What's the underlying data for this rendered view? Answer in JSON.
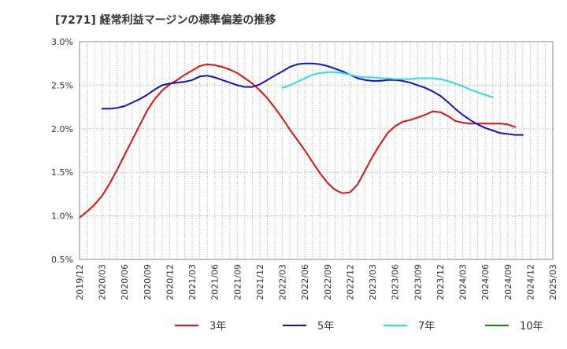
{
  "chart_data": {
    "type": "line",
    "title": "[7271]  経常利益マージンの標準偏差の推移",
    "x_ticks": [
      "2019/12",
      "2020/03",
      "2020/06",
      "2020/09",
      "2020/12",
      "2021/03",
      "2021/06",
      "2021/09",
      "2021/12",
      "2022/03",
      "2022/06",
      "2022/09",
      "2022/12",
      "2023/03",
      "2023/06",
      "2023/09",
      "2023/12",
      "2024/03",
      "2024/06",
      "2024/09",
      "2024/12",
      "2025/03"
    ],
    "y_ticks": [
      "0.5%",
      "1.0%",
      "1.5%",
      "2.0%",
      "2.5%",
      "3.0%"
    ],
    "ylim": [
      0.5,
      3.0
    ],
    "grid": true,
    "legend_position": "bottom",
    "series": [
      {
        "name": "3年",
        "color": "#dd1111",
        "start_index": 0,
        "values": [
          0.98,
          1.05,
          1.13,
          1.23,
          1.37,
          1.53,
          1.7,
          1.87,
          2.04,
          2.21,
          2.34,
          2.44,
          2.51,
          2.56,
          2.62,
          2.67,
          2.72,
          2.74,
          2.73,
          2.71,
          2.68,
          2.64,
          2.58,
          2.52,
          2.44,
          2.35,
          2.24,
          2.12,
          1.99,
          1.87,
          1.75,
          1.62,
          1.49,
          1.38,
          1.3,
          1.26,
          1.27,
          1.36,
          1.52,
          1.68,
          1.82,
          1.95,
          2.03,
          2.08,
          2.1,
          2.13,
          2.16,
          2.2,
          2.19,
          2.15,
          2.09,
          2.07,
          2.06,
          2.06,
          2.06,
          2.06,
          2.06,
          2.05,
          2.02
        ]
      },
      {
        "name": "5年",
        "color": "#1111cc",
        "start_index": 3,
        "values": [
          2.23,
          2.23,
          2.24,
          2.26,
          2.3,
          2.34,
          2.39,
          2.45,
          2.5,
          2.52,
          2.53,
          2.54,
          2.56,
          2.6,
          2.61,
          2.59,
          2.56,
          2.53,
          2.5,
          2.48,
          2.48,
          2.51,
          2.56,
          2.61,
          2.66,
          2.71,
          2.74,
          2.75,
          2.75,
          2.74,
          2.72,
          2.69,
          2.66,
          2.62,
          2.58,
          2.56,
          2.55,
          2.55,
          2.56,
          2.56,
          2.55,
          2.53,
          2.5,
          2.47,
          2.43,
          2.38,
          2.31,
          2.23,
          2.16,
          2.1,
          2.05,
          2.01,
          1.98,
          1.95,
          1.94,
          1.93,
          1.93
        ]
      },
      {
        "name": "7年",
        "color": "#22e0ee",
        "start_index": 27,
        "values": [
          2.47,
          2.5,
          2.54,
          2.58,
          2.62,
          2.64,
          2.65,
          2.65,
          2.64,
          2.62,
          2.6,
          2.59,
          2.59,
          2.58,
          2.58,
          2.57,
          2.57,
          2.57,
          2.58,
          2.58,
          2.58,
          2.57,
          2.55,
          2.52,
          2.49,
          2.45,
          2.42,
          2.39,
          2.36
        ]
      },
      {
        "name": "10年",
        "color": "#118811",
        "start_index": 0,
        "values": []
      }
    ]
  }
}
